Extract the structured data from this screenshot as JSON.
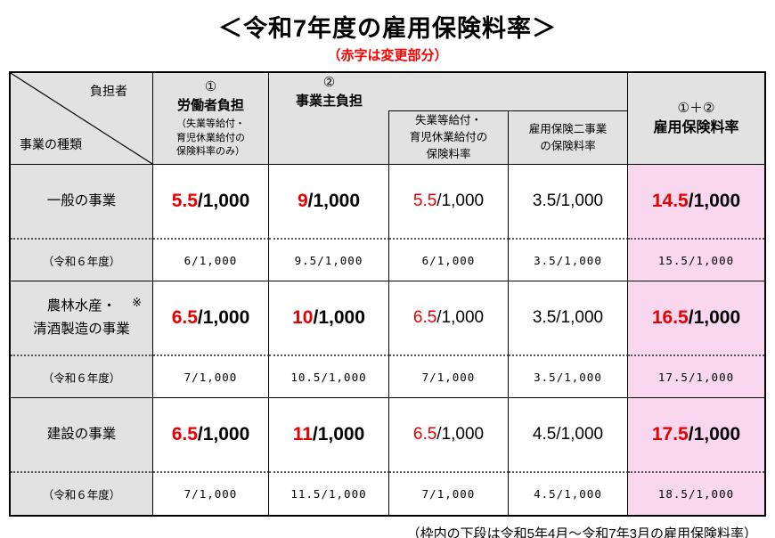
{
  "page": {
    "title": "＜令和7年度の雇用保険料率＞",
    "subtitle": "（赤字は変更部分）",
    "footnote": "（枠内の下段は令和5年4月～令和7年3月の雇用保険料率）"
  },
  "colors": {
    "red": "#e60000",
    "subtitle-red": "#ff0000",
    "header-bg": "#e2e2e2",
    "pink-bg": "#f8d7ef",
    "border": "#000000",
    "dotted": "#555555"
  },
  "table": {
    "corner": {
      "top_right": "負担者",
      "bottom_left": "事業の種類"
    },
    "headers": {
      "worker": {
        "circle": "①",
        "title": "労働者負担",
        "note": "（失業等給付・\n育児休業給付の\n保険料率のみ）"
      },
      "employer": {
        "circle": "②",
        "title": "事業主負担"
      },
      "employer_sub1": "失業等給付・\n育児休業給付の\n保険料率",
      "employer_sub2": "雇用保険二事業\nの保険料率",
      "total": {
        "circle": "①＋②",
        "title": "雇用保険料率"
      }
    },
    "groups": [
      {
        "name": "一般の事業",
        "mark": "",
        "prev_label": "（令和６年度）",
        "current": [
          {
            "num": "5.5",
            "suffix": "/1,000",
            "red": true,
            "bold": true
          },
          {
            "num": "9",
            "suffix": "/1,000",
            "red": true,
            "bold": true
          },
          {
            "num": "5.5",
            "suffix": "/1,000",
            "red": true,
            "bold": false
          },
          {
            "num": "3.5",
            "suffix": "/1,000",
            "red": false,
            "bold": false
          },
          {
            "num": "14.5",
            "suffix": "/1,000",
            "red": true,
            "bold": true
          }
        ],
        "previous": [
          "6/1,000",
          "9.5/1,000",
          "6/1,000",
          "3.5/1,000",
          "15.5/1,000"
        ]
      },
      {
        "name": "農林水産・\n清酒製造の事業",
        "mark": "※",
        "prev_label": "（令和６年度）",
        "current": [
          {
            "num": "6.5",
            "suffix": "/1,000",
            "red": true,
            "bold": true
          },
          {
            "num": "10",
            "suffix": "/1,000",
            "red": true,
            "bold": true
          },
          {
            "num": "6.5",
            "suffix": "/1,000",
            "red": true,
            "bold": false
          },
          {
            "num": "3.5",
            "suffix": "/1,000",
            "red": false,
            "bold": false
          },
          {
            "num": "16.5",
            "suffix": "/1,000",
            "red": true,
            "bold": true
          }
        ],
        "previous": [
          "7/1,000",
          "10.5/1,000",
          "7/1,000",
          "3.5/1,000",
          "17.5/1,000"
        ]
      },
      {
        "name": "建設の事業",
        "mark": "",
        "prev_label": "（令和６年度）",
        "current": [
          {
            "num": "6.5",
            "suffix": "/1,000",
            "red": true,
            "bold": true
          },
          {
            "num": "11",
            "suffix": "/1,000",
            "red": true,
            "bold": true
          },
          {
            "num": "6.5",
            "suffix": "/1,000",
            "red": true,
            "bold": false
          },
          {
            "num": "4.5",
            "suffix": "/1,000",
            "red": false,
            "bold": false
          },
          {
            "num": "17.5",
            "suffix": "/1,000",
            "red": true,
            "bold": true
          }
        ],
        "previous": [
          "7/1,000",
          "11.5/1,000",
          "7/1,000",
          "4.5/1,000",
          "18.5/1,000"
        ]
      }
    ]
  }
}
